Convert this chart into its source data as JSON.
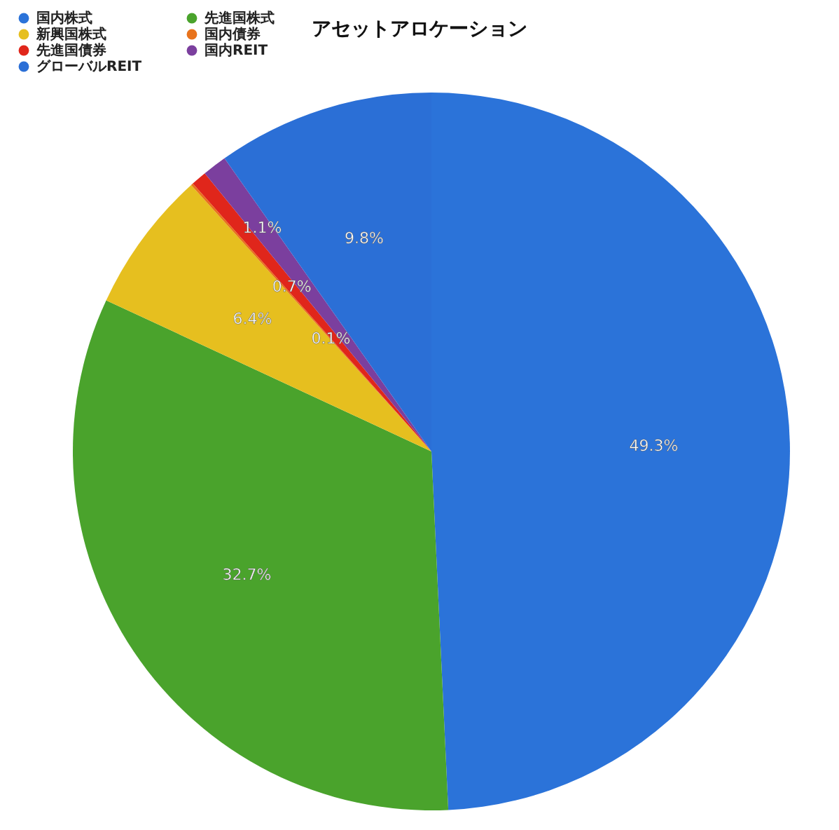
{
  "chart_data": {
    "type": "pie",
    "title": "アセットアロケーション",
    "categories": [
      "国内株式",
      "先進国株式",
      "新興国株式",
      "国内債券",
      "先進国債券",
      "国内REIT",
      "グローバルREIT"
    ],
    "values": [
      49.3,
      32.7,
      6.4,
      0.1,
      0.7,
      1.1,
      9.8
    ],
    "value_labels": [
      "49.3%",
      "32.7%",
      "6.4%",
      "0.1%",
      "0.7%",
      "1.1%",
      "9.8%"
    ],
    "colors": [
      "#2b73d9",
      "#4aa32c",
      "#e6bf1f",
      "#e8731c",
      "#e0261b",
      "#7b3f9e",
      "#2b6fd6"
    ],
    "legend": "top left"
  }
}
